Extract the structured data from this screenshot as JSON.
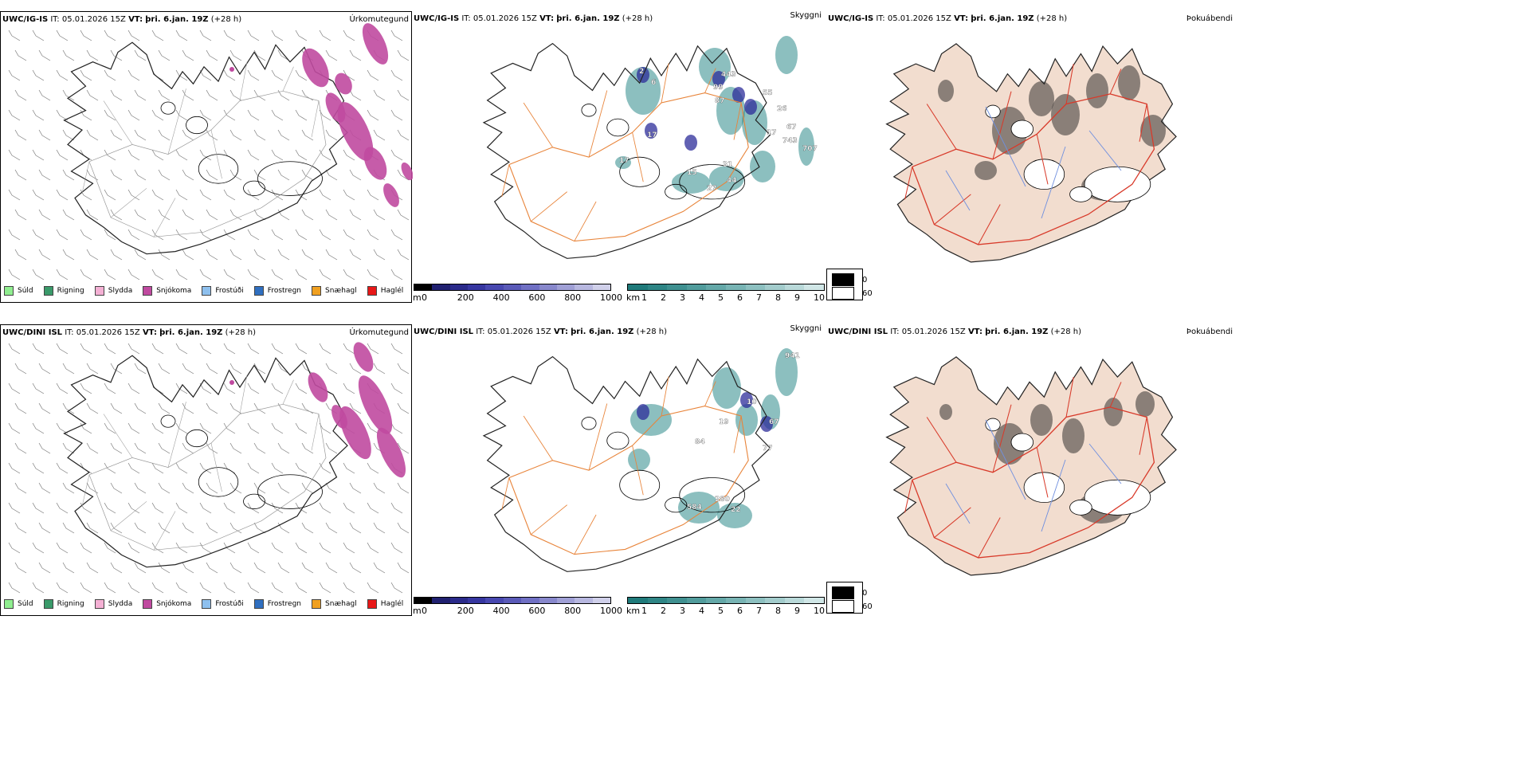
{
  "rows": [
    {
      "model": "UWC/IG-IS",
      "it": "IT: 05.01.2026 15Z",
      "vt_label": "VT:",
      "vt_value": "þri. 6.jan. 19Z",
      "lead": "(+28 h)",
      "titles": {
        "precip": "Úrkomutegund",
        "visibility": "Skyggni",
        "cloud": "Þokuábendi"
      },
      "visibility_labels": [
        "2",
        "6",
        "17",
        "443",
        "99",
        "87",
        "55",
        "26",
        "17",
        "743",
        "67",
        "17",
        "31",
        "44",
        "27",
        "15",
        "707"
      ]
    },
    {
      "model": "UWC/DINI ISL",
      "it": "IT: 05.01.2026 15Z",
      "vt_label": "VT:",
      "vt_value": "þri. 6.jan. 19Z",
      "lead": "(+28 h)",
      "titles": {
        "precip": "Úrkomutegund",
        "visibility": "Skyggni",
        "cloud": "Þokuábendi"
      },
      "visibility_labels": [
        "941",
        "10",
        "67",
        "77",
        "19",
        "84",
        "584",
        "280",
        "22"
      ]
    }
  ],
  "precip_legend": [
    {
      "label": "Súld",
      "color": "#90ee90"
    },
    {
      "label": "Rigning",
      "color": "#3a9a6a"
    },
    {
      "label": "Slydda",
      "color": "#f4b0d4"
    },
    {
      "label": "Snjókoma",
      "color": "#c04aa0"
    },
    {
      "label": "Frostúði",
      "color": "#8ec0ee"
    },
    {
      "label": "Frostregn",
      "color": "#2f6fc0"
    },
    {
      "label": "Snæhagl",
      "color": "#f0a020"
    },
    {
      "label": "Haglél",
      "color": "#e81818"
    }
  ],
  "ceiling_bar": {
    "unit": "m",
    "ticks": [
      "0",
      "200",
      "400",
      "600",
      "800",
      "1000"
    ],
    "colors": [
      "#000000",
      "#202070",
      "#2a2a8a",
      "#3636a0",
      "#4848b0",
      "#5a5ab8",
      "#7070c4",
      "#8888cc",
      "#a0a0d6",
      "#b8b8e0",
      "#d0d0ea"
    ]
  },
  "visibility_bar": {
    "unit": "km",
    "ticks": [
      "1",
      "2",
      "3",
      "4",
      "5",
      "6",
      "7",
      "8",
      "9",
      "10"
    ],
    "colors": [
      "#1f7a7a",
      "#2e8585",
      "#3f9090",
      "#519c9c",
      "#64a8a8",
      "#78b4b4",
      "#8dc0c0",
      "#a3cccc",
      "#b9d9d9",
      "#d0e6e6"
    ]
  },
  "cloud_legend": [
    {
      "value": "0",
      "color": "#000000"
    },
    {
      "value": "60",
      "color": "#ffffff"
    }
  ],
  "colors": {
    "snow": "#c04aa0",
    "vis_teal": "#2e8a8a",
    "vis_navy": "#2c2c9a",
    "roads_orange": "#e8843a",
    "roads_red": "#d83a2a",
    "land_tan": "#f2ddcf",
    "rivers_blue": "#6f8fdf"
  }
}
